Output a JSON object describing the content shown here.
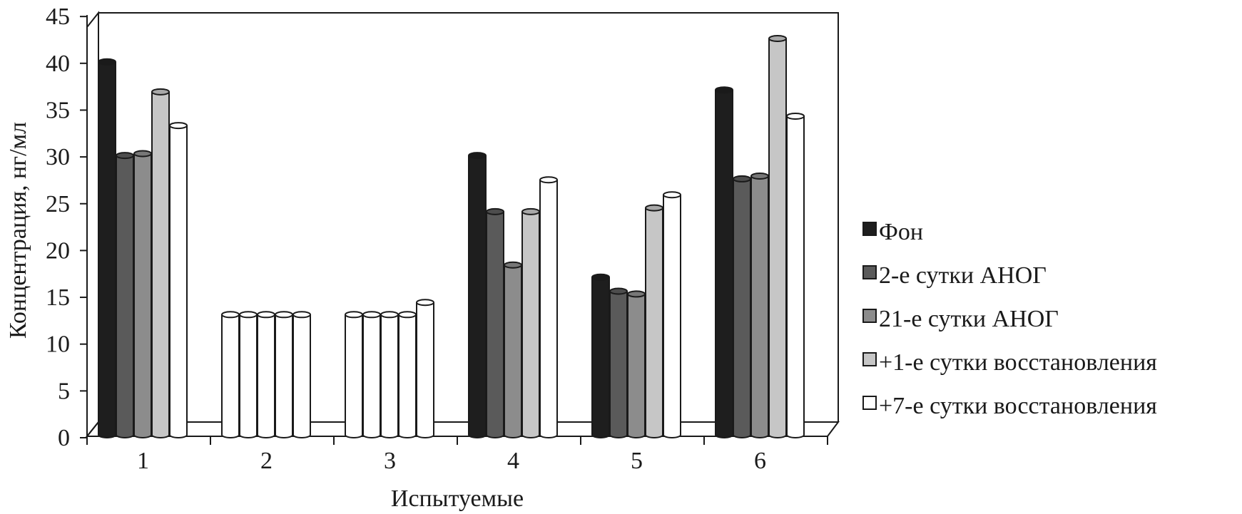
{
  "chart_data": {
    "type": "bar",
    "title": "",
    "xlabel": "Испытуемые",
    "ylabel": "Концентрация, нг/мл",
    "categories": [
      "1",
      "2",
      "3",
      "4",
      "5",
      "6"
    ],
    "ylim": [
      0,
      45
    ],
    "yticks": [
      0,
      5,
      10,
      15,
      20,
      25,
      30,
      35,
      40,
      45
    ],
    "grid": false,
    "legend_position": "right",
    "series": [
      {
        "name": "Фон",
        "color": "#1e1e1e",
        "values": [
          40,
          13,
          13,
          30,
          17,
          37
        ]
      },
      {
        "name": "2-е сутки АНОГ",
        "color": "#5a5a5a",
        "values": [
          30,
          13,
          13,
          24,
          15.5,
          27.5
        ]
      },
      {
        "name": "21-е сутки АНОГ",
        "color": "#8c8c8c",
        "values": [
          30.2,
          13,
          13,
          18.3,
          15.2,
          27.8
        ]
      },
      {
        "name": "+1-е сутки восстановления",
        "color": "#c6c6c6",
        "values": [
          36.8,
          13,
          13,
          24,
          24.4,
          42.5
        ]
      },
      {
        "name": "+7-е сутки восстановления",
        "color": "#ffffff",
        "values": [
          33.2,
          13,
          14.3,
          27.4,
          25.8,
          34.2
        ]
      }
    ],
    "white_bars": [
      [
        1,
        0
      ],
      [
        1,
        1
      ],
      [
        1,
        2
      ],
      [
        1,
        3
      ],
      [
        2,
        0
      ],
      [
        2,
        1
      ],
      [
        2,
        2
      ],
      [
        2,
        3
      ]
    ]
  }
}
